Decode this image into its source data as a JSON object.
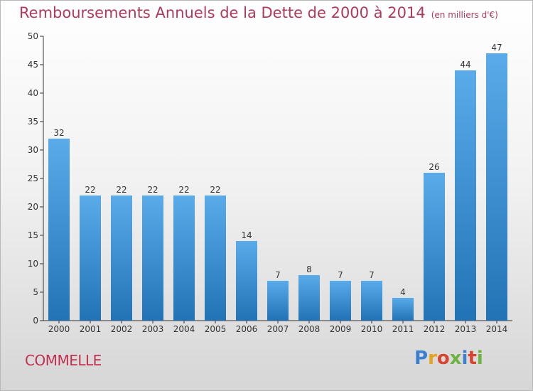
{
  "header": {
    "title": "Remboursements Annuels de la Dette de 2000 à 2014",
    "subtitle": "(en milliers d'€)"
  },
  "footer": {
    "commune": "COMMELLE",
    "logo_text": "Proxiti"
  },
  "colors": {
    "title": "#b03a5b",
    "bar_top": "#5aabea",
    "bar_bottom": "#2273b5"
  },
  "chart_data": {
    "type": "bar",
    "title": "Remboursements Annuels de la Dette de 2000 à 2014",
    "subtitle": "(en milliers d'€)",
    "categories": [
      "2000",
      "2001",
      "2002",
      "2003",
      "2004",
      "2005",
      "2006",
      "2007",
      "2008",
      "2009",
      "2010",
      "2011",
      "2012",
      "2013",
      "2014"
    ],
    "values": [
      32,
      22,
      22,
      22,
      22,
      22,
      14,
      7,
      8,
      7,
      7,
      4,
      26,
      44,
      47
    ],
    "ylim": [
      0,
      50
    ],
    "yticks": [
      0,
      5,
      10,
      15,
      20,
      25,
      30,
      35,
      40,
      45,
      50
    ],
    "grid": false,
    "legend": "none"
  }
}
